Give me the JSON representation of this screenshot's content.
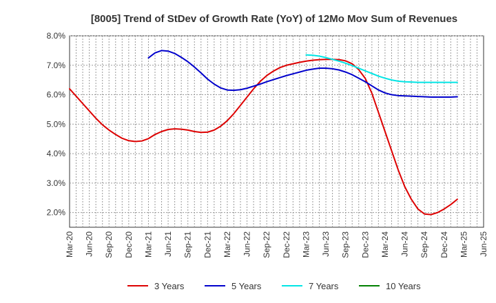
{
  "chart_data": {
    "type": "line",
    "title": "[8005]  Trend of StDev of Growth Rate (YoY) of 12Mo Mov Sum of Revenues",
    "xlabel": "",
    "ylabel": "",
    "ylim": [
      1.5,
      8.0
    ],
    "yticks": [
      2.0,
      3.0,
      4.0,
      5.0,
      6.0,
      7.0,
      8.0
    ],
    "ytick_labels": [
      "2.0%",
      "3.0%",
      "4.0%",
      "5.0%",
      "6.0%",
      "7.0%",
      "8.0%"
    ],
    "xticks": [
      "Mar-20",
      "Jun-20",
      "Sep-20",
      "Dec-20",
      "Mar-21",
      "Jun-21",
      "Sep-21",
      "Dec-21",
      "Mar-22",
      "Jun-22",
      "Sep-22",
      "Dec-22",
      "Mar-23",
      "Jun-23",
      "Sep-23",
      "Dec-23",
      "Mar-24",
      "Jun-24",
      "Sep-24",
      "Dec-24",
      "Mar-25",
      "Jun-25"
    ],
    "grid": true,
    "legend_position": "bottom",
    "series": [
      {
        "name": "3 Years",
        "color": "#dd0000",
        "start_index": 0,
        "values": [
          6.2,
          5.95,
          5.7,
          5.45,
          5.2,
          4.98,
          4.8,
          4.65,
          4.52,
          4.44,
          4.41,
          4.43,
          4.51,
          4.65,
          4.75,
          4.82,
          4.84,
          4.83,
          4.8,
          4.75,
          4.72,
          4.73,
          4.8,
          4.93,
          5.12,
          5.36,
          5.64,
          5.92,
          6.2,
          6.45,
          6.65,
          6.8,
          6.92,
          7.0,
          7.05,
          7.1,
          7.14,
          7.17,
          7.19,
          7.2,
          7.2,
          7.19,
          7.15,
          7.05,
          6.85,
          6.55,
          6.05,
          5.4,
          4.75,
          4.1,
          3.45,
          2.88,
          2.45,
          2.12,
          1.95,
          1.93,
          2.0,
          2.12,
          2.27,
          2.45
        ]
      },
      {
        "name": "5 Years",
        "color": "#0000cc",
        "start_index": 12,
        "values": [
          7.25,
          7.42,
          7.5,
          7.48,
          7.4,
          7.27,
          7.12,
          6.94,
          6.74,
          6.53,
          6.36,
          6.23,
          6.16,
          6.15,
          6.17,
          6.22,
          6.29,
          6.36,
          6.44,
          6.51,
          6.58,
          6.65,
          6.71,
          6.77,
          6.83,
          6.87,
          6.9,
          6.9,
          6.88,
          6.84,
          6.77,
          6.68,
          6.56,
          6.44,
          6.3,
          6.16,
          6.06,
          6.0,
          5.97,
          5.96,
          5.95,
          5.94,
          5.93,
          5.92,
          5.92,
          5.92,
          5.92,
          5.93
        ]
      },
      {
        "name": "7 Years",
        "color": "#00e5e5",
        "start_index": 36,
        "values": [
          7.35,
          7.34,
          7.31,
          7.26,
          7.2,
          7.14,
          7.07,
          6.99,
          6.9,
          6.81,
          6.72,
          6.63,
          6.56,
          6.5,
          6.46,
          6.44,
          6.43,
          6.42,
          6.42,
          6.42,
          6.42,
          6.42,
          6.42,
          6.42
        ]
      },
      {
        "name": "10 Years",
        "color": "#008000",
        "start_index": 0,
        "values": []
      }
    ]
  }
}
